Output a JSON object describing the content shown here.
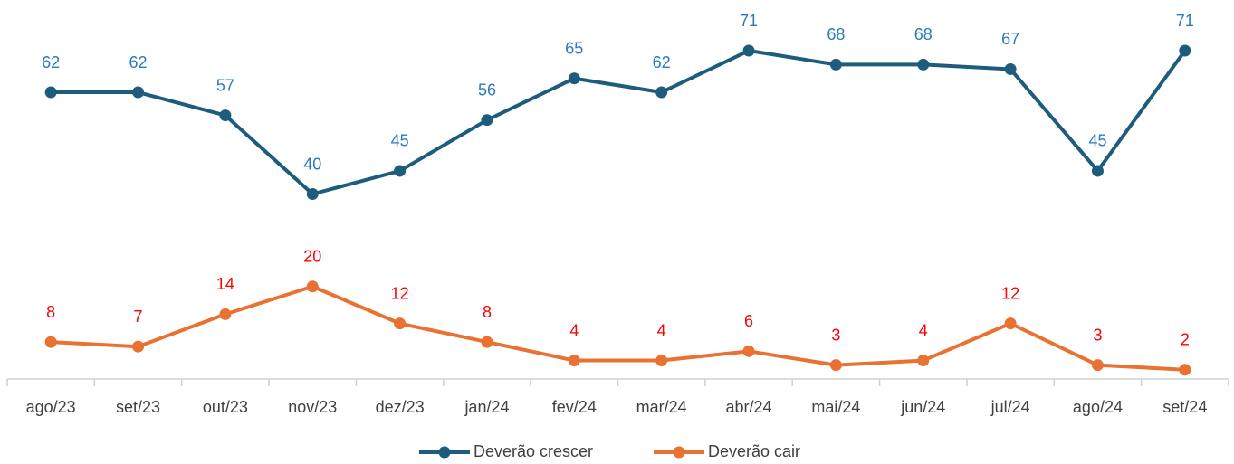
{
  "chart_data": {
    "type": "line",
    "categories": [
      "ago/23",
      "set/23",
      "out/23",
      "nov/23",
      "dez/23",
      "jan/24",
      "fev/24",
      "mar/24",
      "abr/24",
      "mai/24",
      "jun/24",
      "jul/24",
      "ago/24",
      "set/24"
    ],
    "series": [
      {
        "name": "Deverão crescer",
        "color": "#1e5c7d",
        "label_color": "#2a7abf",
        "values": [
          62,
          62,
          57,
          40,
          45,
          56,
          65,
          62,
          71,
          68,
          68,
          67,
          45,
          71
        ]
      },
      {
        "name": "Deverão cair",
        "color": "#e97132",
        "label_color": "#ff0000",
        "values": [
          8,
          7,
          14,
          20,
          12,
          8,
          4,
          4,
          6,
          3,
          4,
          12,
          3,
          2
        ]
      }
    ],
    "ylim": [
      0,
      80
    ],
    "legend": "bottom"
  }
}
